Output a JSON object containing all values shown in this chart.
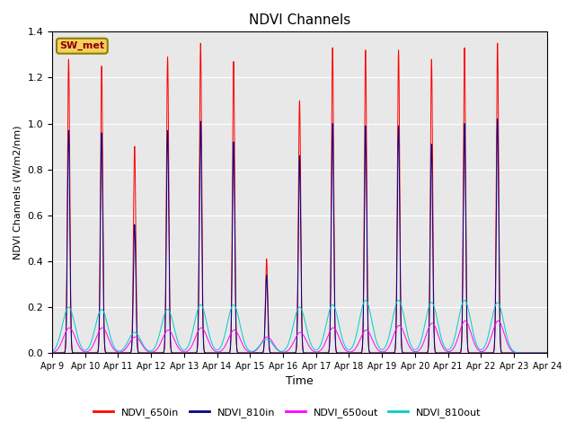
{
  "title": "NDVI Channels",
  "ylabel": "NDVI Channels (W/m2/nm)",
  "xlabel": "Time",
  "ylim": [
    0,
    1.4
  ],
  "yticks": [
    0.0,
    0.2,
    0.4,
    0.6,
    0.8,
    1.0,
    1.2,
    1.4
  ],
  "colors": {
    "NDVI_650in": "#ff0000",
    "NDVI_810in": "#00008b",
    "NDVI_650out": "#ff00ff",
    "NDVI_810out": "#00cccc"
  },
  "legend_label": "SW_met",
  "background_color": "#e8e8e8",
  "fig_background": "#ffffff",
  "xtick_labels": [
    "Apr 9",
    "Apr 10",
    "Apr 11",
    "Apr 12",
    "Apr 13",
    "Apr 14",
    "Apr 15",
    "Apr 16",
    "Apr 17",
    "Apr 18",
    "Apr 19",
    "Apr 20",
    "Apr 21",
    "Apr 22",
    "Apr 23",
    "Apr 24"
  ],
  "n_days": 15,
  "daily_peaks_650in": [
    1.28,
    1.25,
    0.9,
    1.29,
    1.35,
    1.27,
    0.41,
    1.1,
    1.33,
    1.32,
    1.32,
    1.28,
    1.33,
    1.35,
    0.0
  ],
  "daily_peaks_810in": [
    0.97,
    0.96,
    0.56,
    0.97,
    1.01,
    0.92,
    0.34,
    0.86,
    1.0,
    0.99,
    0.99,
    0.91,
    1.0,
    1.02,
    0.0
  ],
  "daily_peaks_650out": [
    0.11,
    0.11,
    0.07,
    0.1,
    0.11,
    0.1,
    0.07,
    0.09,
    0.11,
    0.1,
    0.12,
    0.13,
    0.14,
    0.14,
    0.0
  ],
  "daily_peaks_810out": [
    0.2,
    0.19,
    0.09,
    0.19,
    0.21,
    0.21,
    0.06,
    0.2,
    0.21,
    0.23,
    0.23,
    0.22,
    0.23,
    0.22,
    0.0
  ]
}
